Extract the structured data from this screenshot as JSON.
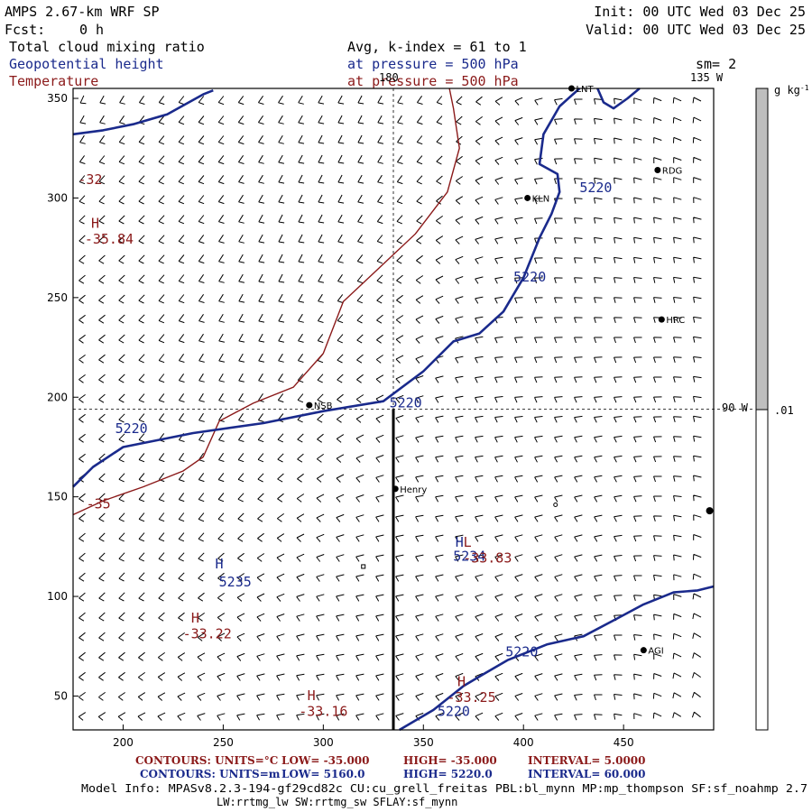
{
  "header": {
    "model": "AMPS 2.67-km WRF SP",
    "init": "Init: 00 UTC Wed 03 Dec 25",
    "fcst_label": "Fcst:",
    "fcst_value": "0 h",
    "valid": "Valid: 00 UTC Wed 03 Dec 25",
    "field1": "Total cloud mixing ratio",
    "field2": "Geopotential height",
    "field3": "Temperature",
    "avg": "Avg, k-index =   61 to    1",
    "pressure1": "at pressure =  500 hPa",
    "pressure2": "at pressure =  500 hPa",
    "sm": "sm= 2",
    "lon135": "135 W",
    "lon180": "180",
    "lon90": "90 W"
  },
  "colorbar": {
    "unit": "g kg",
    "unit_sup": "-1",
    "tick": ".01",
    "fill_color": "#bebebe"
  },
  "colors": {
    "height": "#1a2a8c",
    "temperature": "#8b1a1a",
    "barb": "#000000",
    "frame": "#000000"
  },
  "footer": {
    "row1": [
      {
        "text": "CONTOURS:  UNITS=°C",
        "color": "#8b1a1a"
      },
      {
        "text": "LOW=  -35.000",
        "color": "#8b1a1a"
      },
      {
        "text": "HIGH=  -35.000",
        "color": "#8b1a1a"
      },
      {
        "text": "INTERVAL=    5.0000",
        "color": "#8b1a1a"
      }
    ],
    "row2": [
      {
        "text": "CONTOURS:  UNITS=m",
        "color": "#1a2a8c"
      },
      {
        "text": "LOW=   5160.0",
        "color": "#1a2a8c"
      },
      {
        "text": "HIGH=   5220.0",
        "color": "#1a2a8c"
      },
      {
        "text": "INTERVAL=   60.000",
        "color": "#1a2a8c"
      }
    ],
    "model_info": "Model Info: MPASv8.2.3-194-gf29cd82c CU:cu_grell_freitas PBL:bl_mynn MP:mp_thompson SF:sf_noahmp 2.7",
    "model_info2": "LW:rrtmg_lw SW:rrtmg_sw SFLAY:sf_mynn"
  },
  "chart_data": {
    "type": "contour",
    "xlim": [
      175,
      495
    ],
    "ylim": [
      33,
      355
    ],
    "x_ticks": [
      200,
      250,
      300,
      350,
      400,
      450
    ],
    "y_ticks": [
      50,
      100,
      150,
      200,
      250,
      300,
      350
    ],
    "x_tick_labels": [
      "200",
      "250",
      "300",
      "350",
      "400",
      "450"
    ],
    "y_tick_labels": [
      "50",
      "100",
      "150",
      "200",
      "250",
      "300",
      "350"
    ],
    "height_contours": [
      {
        "value": 5220,
        "points": [
          [
            175,
            332
          ],
          [
            190,
            334
          ],
          [
            205,
            337
          ],
          [
            222,
            342
          ],
          [
            240,
            352
          ],
          [
            245,
            354
          ]
        ]
      },
      {
        "value": 5220,
        "points": [
          [
            175,
            155
          ],
          [
            185,
            165
          ],
          [
            200,
            175
          ],
          [
            235,
            182
          ],
          [
            270,
            187
          ],
          [
            300,
            193
          ],
          [
            330,
            198
          ],
          [
            350,
            213
          ],
          [
            365,
            228
          ],
          [
            378,
            232
          ],
          [
            390,
            243
          ],
          [
            400,
            260
          ],
          [
            408,
            280
          ],
          [
            414,
            292
          ],
          [
            418,
            303
          ],
          [
            417,
            312
          ],
          [
            408,
            317
          ],
          [
            410,
            332
          ],
          [
            418,
            346
          ],
          [
            428,
            355
          ]
        ]
      },
      {
        "value": 5220,
        "points": [
          [
            338,
            33
          ],
          [
            355,
            43
          ],
          [
            370,
            55
          ],
          [
            380,
            61
          ],
          [
            392,
            68
          ],
          [
            412,
            76
          ],
          [
            430,
            80
          ],
          [
            445,
            88
          ],
          [
            460,
            96
          ],
          [
            475,
            102
          ],
          [
            487,
            103
          ],
          [
            495,
            105
          ]
        ]
      },
      {
        "value": 5220,
        "points": [
          [
            437,
            355
          ],
          [
            440,
            348
          ],
          [
            445,
            345
          ],
          [
            452,
            350
          ],
          [
            458,
            355
          ]
        ]
      }
    ],
    "height_labels": [
      {
        "text": "5220",
        "x": 196,
        "y": 182
      },
      {
        "text": "5220",
        "x": 333,
        "y": 195
      },
      {
        "text": "5220",
        "x": 395,
        "y": 258
      },
      {
        "text": "5220",
        "x": 428,
        "y": 303
      },
      {
        "text": "5220",
        "x": 391,
        "y": 70
      },
      {
        "text": "5220",
        "x": 357,
        "y": 40
      }
    ],
    "temperature_contours": [
      {
        "value": -35,
        "points": [
          [
            175,
            141
          ],
          [
            190,
            148
          ],
          [
            210,
            155
          ],
          [
            230,
            163
          ],
          [
            240,
            170
          ],
          [
            248,
            188
          ],
          [
            265,
            197
          ],
          [
            285,
            205
          ],
          [
            300,
            222
          ],
          [
            310,
            248
          ],
          [
            328,
            265
          ],
          [
            346,
            282
          ],
          [
            362,
            303
          ],
          [
            368,
            325
          ],
          [
            365,
            345
          ],
          [
            363,
            355
          ]
        ]
      }
    ],
    "temperature_labels": [
      {
        "text": "-35",
        "x": 187,
        "y": 145
      }
    ],
    "extrema": [
      {
        "kind": "H",
        "value": "5235",
        "color": "#1a2a8c",
        "x": 246,
        "y": 114,
        "label_x": 256,
        "label_y": 105
      },
      {
        "kind": "H",
        "value": "5234",
        "color": "#1a2a8c",
        "x": 366,
        "y": 125,
        "label_x": 373,
        "label_y": 118
      },
      {
        "kind": "L",
        "value": "-33.83",
        "color": "#8b1a1a",
        "x": 370,
        "y": 125,
        "label_x": 382,
        "label_y": 117
      },
      {
        "kind": "H",
        "value": "-35.84",
        "color": "#8b1a1a",
        "x": 184,
        "y": 285,
        "label_x": 193,
        "label_y": 277
      },
      {
        "kind": "H",
        "value": "-33.22",
        "color": "#8b1a1a",
        "x": 234,
        "y": 87,
        "label_x": 242,
        "label_y": 79
      },
      {
        "kind": "H",
        "value": "-33.16",
        "color": "#8b1a1a",
        "x": 292,
        "y": 48,
        "label_x": 300,
        "label_y": 40
      },
      {
        "kind": "H",
        "value": "-33.25",
        "color": "#8b1a1a",
        "x": 367,
        "y": 55,
        "label_x": 374,
        "label_y": 47
      }
    ],
    "extra_labels": [
      {
        "text": "-32",
        "x": 181,
        "y": 307,
        "color": "#8b1a1a"
      }
    ],
    "stations": [
      {
        "name": "NSB",
        "x": 293,
        "y": 196
      },
      {
        "name": "Henry",
        "x": 336,
        "y": 154
      },
      {
        "name": "KLN",
        "x": 402,
        "y": 300
      },
      {
        "name": "RDG",
        "x": 467,
        "y": 314
      },
      {
        "name": "HRC",
        "x": 469,
        "y": 239
      },
      {
        "name": "AGI",
        "x": 460,
        "y": 73
      },
      {
        "name": "LNT",
        "x": 424,
        "y": 355
      }
    ],
    "markers": [
      {
        "type": "square",
        "x": 320,
        "y": 115
      },
      {
        "type": "circle",
        "x": 416,
        "y": 146
      },
      {
        "type": "dot",
        "x": 493,
        "y": 143
      }
    ],
    "reference_lines": {
      "vertical_dashed_x": 335,
      "horizontal_dashed_y": 194,
      "thick_vertical_x": 335,
      "thick_vertical_y": [
        33,
        194
      ]
    },
    "colorbar_range": [
      0,
      1
    ],
    "colorbar_tick_value": 0.01,
    "grid": false,
    "legend": "right"
  }
}
